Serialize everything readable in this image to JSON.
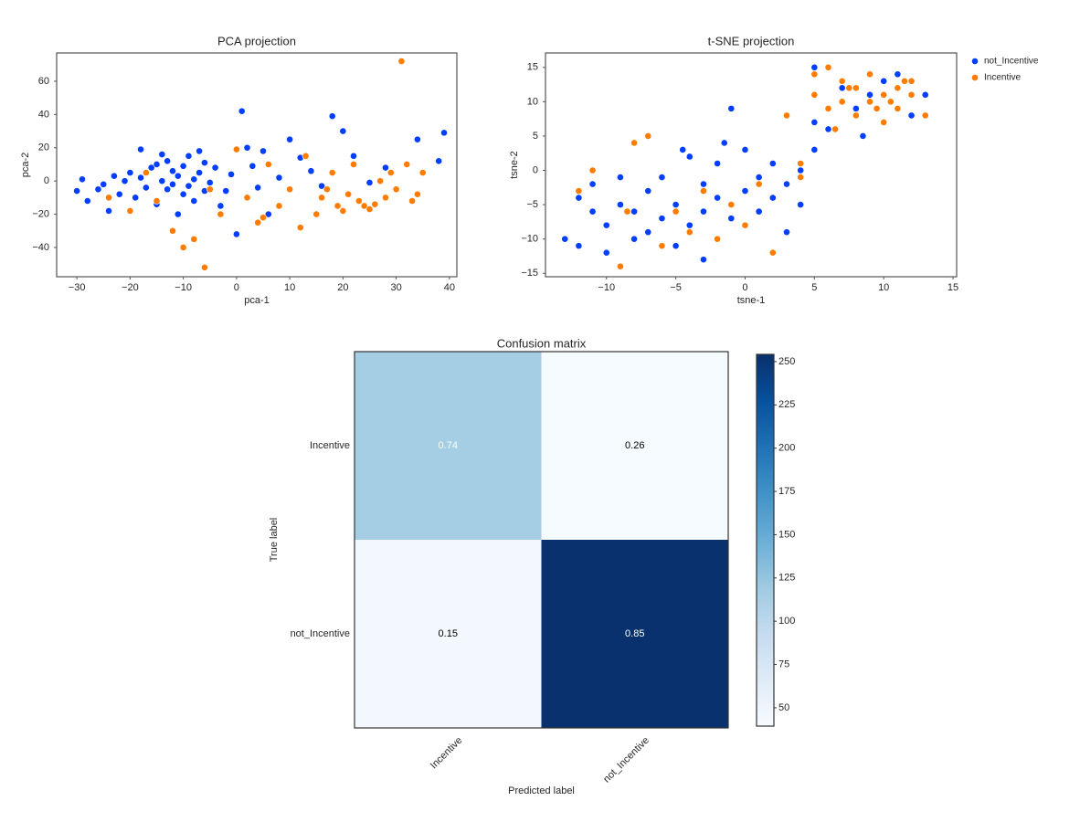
{
  "chart_data": [
    {
      "type": "scatter",
      "title": "PCA projection",
      "xlabel": "pca-1",
      "ylabel": "pca-2",
      "xlim": [
        -33.8,
        41.4
      ],
      "ylim": [
        -57.6,
        77
      ],
      "xticks": [
        {
          "value": -30,
          "label": "−30"
        },
        {
          "value": -20,
          "label": "−20"
        },
        {
          "value": -10,
          "label": "−10"
        },
        0,
        10,
        20,
        30,
        40
      ],
      "yticks": [
        {
          "value": -40,
          "label": "−40"
        },
        {
          "value": -20,
          "label": "−20"
        },
        0,
        20,
        40,
        60
      ],
      "series": [
        {
          "color": "#023eff",
          "x": [
            -30,
            -29,
            -28,
            -26,
            -25,
            -24,
            -23,
            -22,
            -21,
            -20,
            -19,
            -18,
            -18,
            -17,
            -16,
            -15,
            -15,
            -14,
            -14,
            -13,
            -13,
            -12,
            -12,
            -11,
            -11,
            -10,
            -10,
            -9,
            -9,
            -8,
            -8,
            -7,
            -7,
            -6,
            -6,
            -5,
            -4,
            -3,
            -2,
            -1,
            0,
            1,
            2,
            3,
            4,
            5,
            6,
            8,
            10,
            12,
            14,
            16,
            18,
            20,
            22,
            25,
            28,
            34,
            38,
            39
          ],
          "values": [
            -6,
            1,
            -12,
            -5,
            -2,
            -18,
            3,
            -8,
            0,
            5,
            -10,
            19,
            2,
            -4,
            8,
            10,
            -14,
            0,
            16,
            -5,
            12,
            -2,
            6,
            -20,
            3,
            -8,
            9,
            -3,
            15,
            1,
            -12,
            18,
            5,
            -6,
            11,
            -1,
            8,
            -15,
            -6,
            4,
            -32,
            42,
            20,
            9,
            -4,
            18,
            -20,
            2,
            25,
            14,
            6,
            -3,
            39,
            30,
            15,
            -1,
            8,
            25,
            12,
            29
          ]
        },
        {
          "color": "#ff7c00",
          "x": [
            -24,
            -20,
            -17,
            -15,
            -12,
            -10,
            -8,
            -6,
            -5,
            -3,
            0,
            2,
            4,
            5,
            6,
            8,
            10,
            12,
            13,
            15,
            16,
            17,
            18,
            19,
            20,
            21,
            22,
            23,
            24,
            25,
            26,
            27,
            28,
            29,
            30,
            31,
            32,
            33,
            34,
            35
          ],
          "values": [
            -10,
            -18,
            5,
            -12,
            -30,
            -40,
            -35,
            -52,
            -5,
            -20,
            19,
            -10,
            -25,
            -22,
            10,
            -15,
            -5,
            -28,
            15,
            -20,
            -10,
            -5,
            5,
            -15,
            -18,
            -8,
            10,
            -12,
            -15,
            -17,
            -14,
            0,
            -10,
            5,
            -5,
            72,
            10,
            -12,
            -8,
            5
          ]
        }
      ]
    },
    {
      "type": "scatter",
      "title": "t-SNE projection",
      "xlabel": "tsne-1",
      "ylabel": "tsne-2",
      "xlim": [
        -14.4,
        15.26
      ],
      "ylim": [
        -15.5,
        17.1
      ],
      "legend": "outside-right",
      "xticks": [
        {
          "value": -10,
          "label": "−10"
        },
        {
          "value": -5,
          "label": "−5"
        },
        0,
        5,
        10,
        15
      ],
      "yticks": [
        {
          "value": -15,
          "label": "−15"
        },
        {
          "value": -10,
          "label": "−10"
        },
        {
          "value": -5,
          "label": "−5"
        },
        0,
        5,
        10,
        15
      ],
      "series": [
        {
          "name": "not_Incentive",
          "color": "#023eff",
          "x": [
            -13,
            -12,
            -12,
            -11,
            -11,
            -10,
            -10,
            -9,
            -9,
            -8,
            -8,
            -7,
            -7,
            -6,
            -6,
            -5,
            -5,
            -4,
            -4,
            -3,
            -3,
            -2,
            -2,
            -1,
            -1,
            0,
            0,
            1,
            1,
            2,
            2,
            3,
            3,
            4,
            4,
            5,
            5,
            6,
            7,
            8,
            9,
            10,
            11,
            12,
            13,
            -1.5,
            -4.5,
            -3,
            5,
            8.5
          ],
          "values": [
            -10,
            -4,
            -11,
            -6,
            -2,
            -8,
            -12,
            -5,
            -1,
            -10,
            -6,
            -3,
            -9,
            -7,
            -1,
            -5,
            -11,
            -8,
            2,
            -2,
            -6,
            -4,
            1,
            9,
            -7,
            -3,
            3,
            -1,
            -6,
            -4,
            1,
            -9,
            -2,
            0,
            -5,
            15,
            3,
            6,
            12,
            9,
            11,
            13,
            14,
            8,
            11,
            4,
            3,
            -13,
            7,
            5
          ]
        },
        {
          "name": "Incentive",
          "color": "#ff7c00",
          "x": [
            -12,
            -11,
            -9,
            -8,
            -7,
            -6,
            -5,
            -4,
            -3,
            -2,
            -1,
            0,
            1,
            2,
            3,
            4,
            5,
            5,
            6,
            6,
            7,
            7,
            8,
            8,
            9,
            9,
            10,
            10,
            11,
            11,
            12,
            12,
            13,
            6.5,
            9.5,
            -8.5,
            4,
            7.5,
            10.5,
            11.5
          ],
          "values": [
            -3,
            0,
            -14,
            4,
            5,
            -11,
            -6,
            -9,
            -3,
            -10,
            -5,
            -8,
            -2,
            -12,
            8,
            -1,
            14,
            11,
            15,
            9,
            10,
            13,
            8,
            12,
            10,
            14,
            11,
            7,
            12,
            9,
            11,
            13,
            8,
            6,
            9,
            -6,
            1,
            12,
            10,
            13
          ]
        }
      ]
    },
    {
      "type": "heatmap",
      "title": "Confusion matrix",
      "xlabel": "Predicted label",
      "ylabel": "True label",
      "x_categories": [
        "Incentive",
        "not_Incentive"
      ],
      "y_categories": [
        "Incentive",
        "not_Incentive"
      ],
      "values": [
        [
          0.74,
          0.26
        ],
        [
          0.15,
          0.85
        ]
      ],
      "counts": [
        [
          115,
          40
        ],
        [
          45,
          253
        ]
      ],
      "colormap": "Blues",
      "clim": [
        39.4,
        254.2
      ],
      "colorbar_ticks": [
        50,
        75,
        100,
        125,
        150,
        175,
        200,
        225,
        250
      ]
    }
  ]
}
